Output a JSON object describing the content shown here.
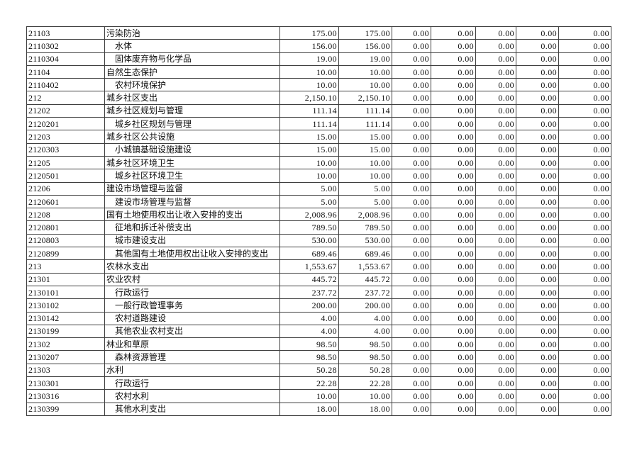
{
  "colors": {
    "page_background": "#ffffff",
    "table_border": "#3f3f3f",
    "text": "#0d0d0d"
  },
  "table": {
    "description": "budget expenditure table by functional classification code",
    "visible_header": false,
    "numeric_column_count": 7,
    "rows": [
      {
        "code": "21103",
        "name": "污染防治",
        "indent": 0,
        "values": [
          "175.00",
          "175.00",
          "0.00",
          "0.00",
          "0.00",
          "0.00",
          "0.00"
        ]
      },
      {
        "code": "2110302",
        "name": "水体",
        "indent": 1,
        "values": [
          "156.00",
          "156.00",
          "0.00",
          "0.00",
          "0.00",
          "0.00",
          "0.00"
        ]
      },
      {
        "code": "2110304",
        "name": "固体废弃物与化学品",
        "indent": 1,
        "values": [
          "19.00",
          "19.00",
          "0.00",
          "0.00",
          "0.00",
          "0.00",
          "0.00"
        ]
      },
      {
        "code": "21104",
        "name": "自然生态保护",
        "indent": 0,
        "values": [
          "10.00",
          "10.00",
          "0.00",
          "0.00",
          "0.00",
          "0.00",
          "0.00"
        ]
      },
      {
        "code": "2110402",
        "name": "农村环境保护",
        "indent": 1,
        "values": [
          "10.00",
          "10.00",
          "0.00",
          "0.00",
          "0.00",
          "0.00",
          "0.00"
        ]
      },
      {
        "code": "212",
        "name": "城乡社区支出",
        "indent": 0,
        "values": [
          "2,150.10",
          "2,150.10",
          "0.00",
          "0.00",
          "0.00",
          "0.00",
          "0.00"
        ]
      },
      {
        "code": "21202",
        "name": "城乡社区规划与管理",
        "indent": 0,
        "values": [
          "111.14",
          "111.14",
          "0.00",
          "0.00",
          "0.00",
          "0.00",
          "0.00"
        ]
      },
      {
        "code": "2120201",
        "name": "城乡社区规划与管理",
        "indent": 1,
        "values": [
          "111.14",
          "111.14",
          "0.00",
          "0.00",
          "0.00",
          "0.00",
          "0.00"
        ]
      },
      {
        "code": "21203",
        "name": "城乡社区公共设施",
        "indent": 0,
        "values": [
          "15.00",
          "15.00",
          "0.00",
          "0.00",
          "0.00",
          "0.00",
          "0.00"
        ]
      },
      {
        "code": "2120303",
        "name": "小城镇基础设施建设",
        "indent": 1,
        "values": [
          "15.00",
          "15.00",
          "0.00",
          "0.00",
          "0.00",
          "0.00",
          "0.00"
        ]
      },
      {
        "code": "21205",
        "name": "城乡社区环境卫生",
        "indent": 0,
        "values": [
          "10.00",
          "10.00",
          "0.00",
          "0.00",
          "0.00",
          "0.00",
          "0.00"
        ]
      },
      {
        "code": "2120501",
        "name": "城乡社区环境卫生",
        "indent": 1,
        "values": [
          "10.00",
          "10.00",
          "0.00",
          "0.00",
          "0.00",
          "0.00",
          "0.00"
        ]
      },
      {
        "code": "21206",
        "name": "建设市场管理与监督",
        "indent": 0,
        "values": [
          "5.00",
          "5.00",
          "0.00",
          "0.00",
          "0.00",
          "0.00",
          "0.00"
        ]
      },
      {
        "code": "2120601",
        "name": "建设市场管理与监督",
        "indent": 1,
        "values": [
          "5.00",
          "5.00",
          "0.00",
          "0.00",
          "0.00",
          "0.00",
          "0.00"
        ]
      },
      {
        "code": "21208",
        "name": "国有土地使用权出让收入安排的支出",
        "indent": 0,
        "values": [
          "2,008.96",
          "2,008.96",
          "0.00",
          "0.00",
          "0.00",
          "0.00",
          "0.00"
        ]
      },
      {
        "code": "2120801",
        "name": "征地和拆迁补偿支出",
        "indent": 1,
        "values": [
          "789.50",
          "789.50",
          "0.00",
          "0.00",
          "0.00",
          "0.00",
          "0.00"
        ]
      },
      {
        "code": "2120803",
        "name": "城市建设支出",
        "indent": 1,
        "values": [
          "530.00",
          "530.00",
          "0.00",
          "0.00",
          "0.00",
          "0.00",
          "0.00"
        ]
      },
      {
        "code": "2120899",
        "name": "其他国有土地使用权出让收入安排的支出",
        "indent": 1,
        "values": [
          "689.46",
          "689.46",
          "0.00",
          "0.00",
          "0.00",
          "0.00",
          "0.00"
        ]
      },
      {
        "code": "213",
        "name": "农林水支出",
        "indent": 0,
        "values": [
          "1,553.67",
          "1,553.67",
          "0.00",
          "0.00",
          "0.00",
          "0.00",
          "0.00"
        ]
      },
      {
        "code": "21301",
        "name": "农业农村",
        "indent": 0,
        "values": [
          "445.72",
          "445.72",
          "0.00",
          "0.00",
          "0.00",
          "0.00",
          "0.00"
        ]
      },
      {
        "code": "2130101",
        "name": "行政运行",
        "indent": 1,
        "values": [
          "237.72",
          "237.72",
          "0.00",
          "0.00",
          "0.00",
          "0.00",
          "0.00"
        ]
      },
      {
        "code": "2130102",
        "name": "一般行政管理事务",
        "indent": 1,
        "values": [
          "200.00",
          "200.00",
          "0.00",
          "0.00",
          "0.00",
          "0.00",
          "0.00"
        ]
      },
      {
        "code": "2130142",
        "name": "农村道路建设",
        "indent": 1,
        "values": [
          "4.00",
          "4.00",
          "0.00",
          "0.00",
          "0.00",
          "0.00",
          "0.00"
        ]
      },
      {
        "code": "2130199",
        "name": "其他农业农村支出",
        "indent": 1,
        "values": [
          "4.00",
          "4.00",
          "0.00",
          "0.00",
          "0.00",
          "0.00",
          "0.00"
        ]
      },
      {
        "code": "21302",
        "name": "林业和草原",
        "indent": 0,
        "values": [
          "98.50",
          "98.50",
          "0.00",
          "0.00",
          "0.00",
          "0.00",
          "0.00"
        ]
      },
      {
        "code": "2130207",
        "name": "森林资源管理",
        "indent": 1,
        "values": [
          "98.50",
          "98.50",
          "0.00",
          "0.00",
          "0.00",
          "0.00",
          "0.00"
        ]
      },
      {
        "code": "21303",
        "name": "水利",
        "indent": 0,
        "values": [
          "50.28",
          "50.28",
          "0.00",
          "0.00",
          "0.00",
          "0.00",
          "0.00"
        ]
      },
      {
        "code": "2130301",
        "name": "行政运行",
        "indent": 1,
        "values": [
          "22.28",
          "22.28",
          "0.00",
          "0.00",
          "0.00",
          "0.00",
          "0.00"
        ]
      },
      {
        "code": "2130316",
        "name": "农村水利",
        "indent": 1,
        "values": [
          "10.00",
          "10.00",
          "0.00",
          "0.00",
          "0.00",
          "0.00",
          "0.00"
        ]
      },
      {
        "code": "2130399",
        "name": "其他水利支出",
        "indent": 1,
        "values": [
          "18.00",
          "18.00",
          "0.00",
          "0.00",
          "0.00",
          "0.00",
          "0.00"
        ]
      }
    ]
  }
}
